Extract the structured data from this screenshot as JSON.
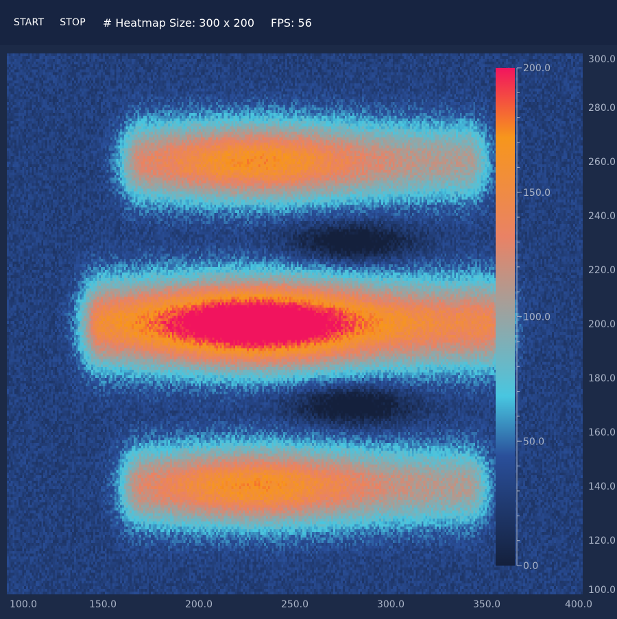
{
  "toolbar": {
    "start_label": "START",
    "stop_label": "STOP",
    "size_text": "# Heatmap Size: 300 x 200",
    "fps_text": "FPS: 56"
  },
  "colors": {
    "background": "#1c2a47",
    "toolbar": "#172441",
    "axis_text": "#a9b3c6",
    "colormap": [
      "#14203c",
      "#2a4f9a",
      "#48c6e0",
      "#e98265",
      "#f7961c",
      "#f1145e"
    ]
  },
  "chart_data": {
    "type": "heatmap",
    "x_range": [
      100,
      400
    ],
    "y_range": [
      100,
      300
    ],
    "x_ticks": [
      "100.0",
      "150.0",
      "200.0",
      "250.0",
      "300.0",
      "350.0",
      "400.0"
    ],
    "y_ticks": [
      "100.0",
      "120.0",
      "140.0",
      "160.0",
      "180.0",
      "200.0",
      "220.0",
      "240.0",
      "260.0",
      "280.0",
      "300.0"
    ],
    "colorbar": {
      "range": [
        0,
        200
      ],
      "ticks": [
        "0.0",
        "50.0",
        "100.0",
        "150.0",
        "200.0"
      ]
    },
    "grid_cols": 300,
    "grid_rows": 200,
    "blobs": [
      {
        "cx": 230,
        "cy": 200,
        "peak": 210,
        "x_extent": [
          150,
          350
        ],
        "half_height": 20
      },
      {
        "cx": 230,
        "cy": 260,
        "peak": 140,
        "x_extent": [
          170,
          340
        ],
        "half_height": 18
      },
      {
        "cx": 230,
        "cy": 140,
        "peak": 140,
        "x_extent": [
          170,
          340
        ],
        "half_height": 18
      }
    ],
    "grid": false,
    "legend": "colorbar-right"
  }
}
